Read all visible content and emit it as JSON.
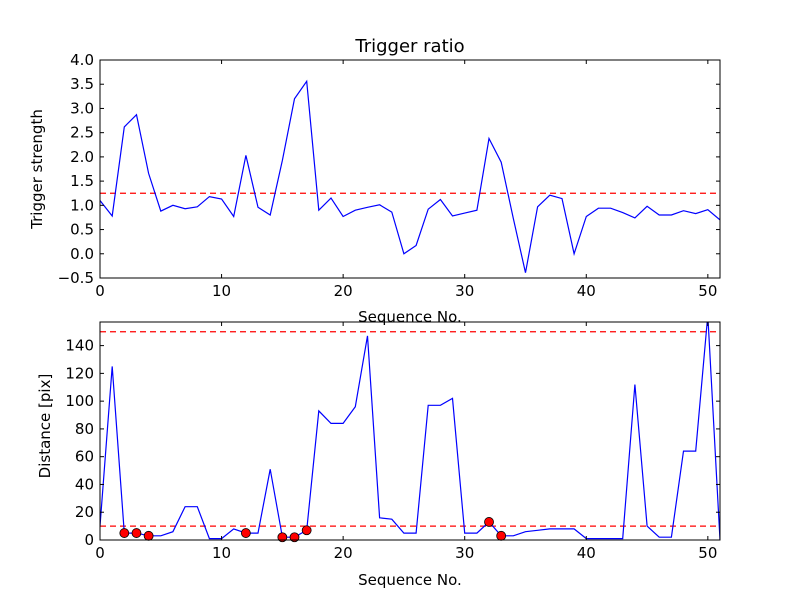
{
  "chart_data": [
    {
      "type": "line",
      "title": "Trigger ratio",
      "xlabel": "Sequence No.",
      "ylabel": "Trigger strength",
      "xlim": [
        0,
        51
      ],
      "ylim": [
        -0.5,
        4.0
      ],
      "xticks": [
        "0",
        "10",
        "20",
        "30",
        "40",
        "50"
      ],
      "yticks": [
        "−0.5",
        "0.0",
        "0.5",
        "1.0",
        "1.5",
        "2.0",
        "2.5",
        "3.0",
        "3.5",
        "4.0"
      ],
      "grid": false,
      "colors": {
        "series": "#0000ff",
        "threshold": "#ff0000"
      },
      "thresholds": [
        1.25
      ],
      "series": [
        {
          "x": [
            0,
            1,
            2,
            3,
            4,
            5,
            6,
            7,
            8,
            9,
            10,
            11,
            12,
            13,
            14,
            15,
            16,
            17,
            18,
            19,
            20,
            21,
            22,
            23,
            24,
            25,
            26,
            27,
            28,
            29,
            30,
            31,
            32,
            33,
            34,
            35,
            36,
            37,
            38,
            39,
            40,
            41,
            42,
            43,
            44,
            45,
            46,
            47,
            48,
            49,
            50,
            51
          ],
          "values": [
            1.1,
            0.78,
            2.62,
            2.87,
            1.66,
            0.88,
            1.0,
            0.93,
            0.97,
            1.18,
            1.13,
            0.77,
            2.03,
            0.96,
            0.8,
            1.93,
            3.2,
            3.56,
            0.9,
            1.15,
            0.77,
            0.9,
            0.96,
            1.01,
            0.86,
            0.0,
            0.17,
            0.92,
            1.12,
            0.78,
            0.84,
            0.9,
            2.38,
            1.89,
            0.73,
            -0.39,
            0.97,
            1.21,
            1.14,
            0.0,
            0.77,
            0.94,
            0.94,
            0.85,
            0.74,
            0.98,
            0.8,
            0.8,
            0.89,
            0.83,
            0.91,
            0.7
          ]
        }
      ]
    },
    {
      "type": "line",
      "title": "",
      "xlabel": "Sequence No.",
      "ylabel": "Distance [pix]",
      "xlim": [
        0,
        51
      ],
      "ylim": [
        0,
        157
      ],
      "xticks": [
        "0",
        "10",
        "20",
        "30",
        "40",
        "50"
      ],
      "yticks": [
        "0",
        "20",
        "40",
        "60",
        "80",
        "100",
        "120",
        "140"
      ],
      "grid": false,
      "colors": {
        "series": "#0000ff",
        "threshold": "#ff0000",
        "markers": "#ff0000"
      },
      "thresholds": [
        10,
        150
      ],
      "series": [
        {
          "x": [
            0,
            1,
            2,
            3,
            4,
            5,
            6,
            7,
            8,
            9,
            10,
            11,
            12,
            13,
            14,
            15,
            16,
            17,
            18,
            19,
            20,
            21,
            22,
            23,
            24,
            25,
            26,
            27,
            28,
            29,
            30,
            31,
            32,
            33,
            34,
            35,
            36,
            37,
            38,
            39,
            40,
            41,
            42,
            43,
            44,
            45,
            46,
            47,
            48,
            49,
            50,
            51
          ],
          "values": [
            10,
            125,
            5,
            5,
            3,
            3,
            6,
            24,
            24,
            1,
            1,
            8,
            5,
            5,
            51,
            2,
            2,
            7,
            93,
            84,
            84,
            96,
            147,
            16,
            15,
            5,
            5,
            97,
            97,
            102,
            5,
            5,
            13,
            3,
            3,
            6,
            7,
            8,
            8,
            8,
            1,
            1,
            1,
            1,
            112,
            10,
            2,
            2,
            64,
            64,
            162,
            0
          ]
        }
      ],
      "markers": {
        "x": [
          2,
          3,
          4,
          12,
          15,
          16,
          17,
          32,
          33
        ],
        "values": [
          5,
          5,
          3,
          5,
          2,
          2,
          7,
          13,
          3
        ]
      }
    }
  ]
}
